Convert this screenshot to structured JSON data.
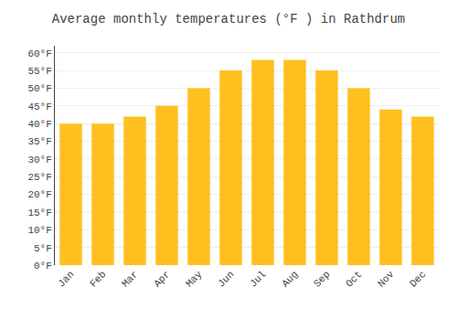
{
  "chart_data": {
    "type": "bar",
    "title": "Average monthly temperatures (°F ) in Rathdrum",
    "categories": [
      "Jan",
      "Feb",
      "Mar",
      "Apr",
      "May",
      "Jun",
      "Jul",
      "Aug",
      "Sep",
      "Oct",
      "Nov",
      "Dec"
    ],
    "values": [
      40,
      40,
      42,
      45,
      50,
      55,
      58,
      58,
      55,
      50,
      44,
      42
    ],
    "color": "#FFC020",
    "ylim": [
      0,
      62
    ],
    "yticks": [
      {
        "value": 0,
        "label": "0°F"
      },
      {
        "value": 5,
        "label": "5°F"
      },
      {
        "value": 10,
        "label": "10°F"
      },
      {
        "value": 15,
        "label": "15°F"
      },
      {
        "value": 20,
        "label": "20°F"
      },
      {
        "value": 25,
        "label": "25°F"
      },
      {
        "value": 30,
        "label": "30°F"
      },
      {
        "value": 35,
        "label": "35°F"
      },
      {
        "value": 40,
        "label": "40°F"
      },
      {
        "value": 45,
        "label": "45°F"
      },
      {
        "value": 50,
        "label": "50°F"
      },
      {
        "value": 55,
        "label": "55°F"
      },
      {
        "value": 60,
        "label": "60°F"
      }
    ],
    "grid": true
  }
}
